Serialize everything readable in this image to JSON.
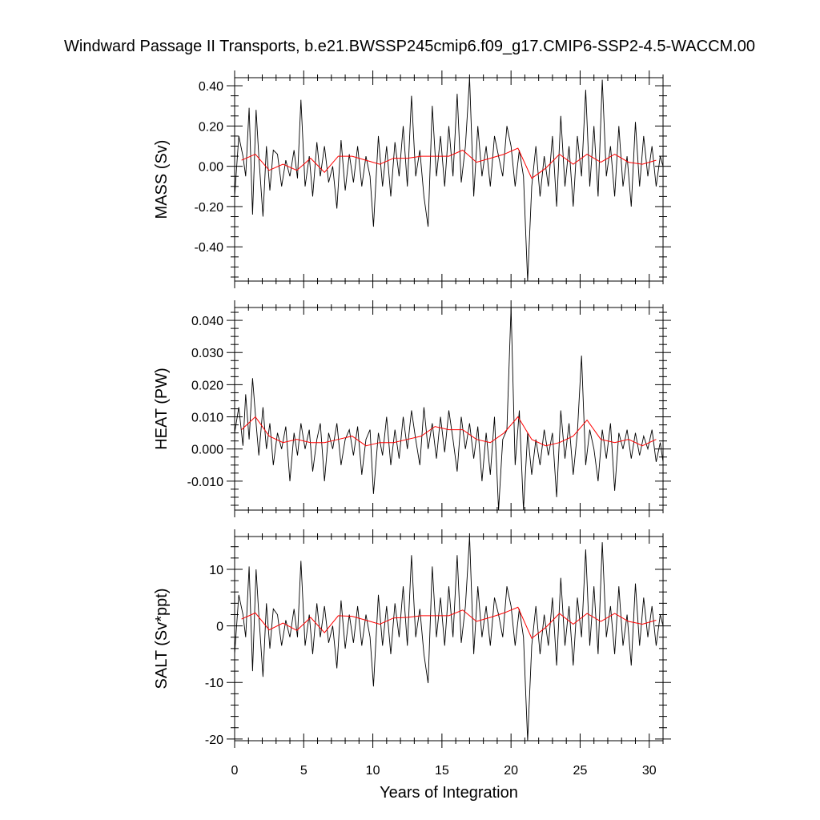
{
  "title": "Windward Passage II Transports, b.e21.BWSSP245cmip6.f09_g17.CMIP6-SSP2-4.5-WACCM.00",
  "chart_data": [
    {
      "type": "line",
      "ylabel": "MASS (Sv)",
      "ylim": [
        -0.57,
        0.44
      ],
      "yticks": [
        {
          "v": 0.4,
          "label": "0.40"
        },
        {
          "v": 0.2,
          "label": "0.20"
        },
        {
          "v": 0.0,
          "label": "0.00"
        },
        {
          "v": -0.2,
          "label": "-0.20"
        },
        {
          "v": -0.4,
          "label": "-0.40"
        }
      ],
      "minor_step": 0.05,
      "monthly_color": "#000000",
      "annual_color": "#ff0000",
      "monthly_x": [
        0.0,
        0.3,
        0.6,
        0.8,
        1.05,
        1.3,
        1.55,
        1.75,
        2.05,
        2.3,
        2.55,
        2.8,
        3.1,
        3.4,
        3.7,
        4.0,
        4.3,
        4.55,
        4.8,
        5.1,
        5.4,
        5.65,
        5.95,
        6.2,
        6.5,
        6.8,
        7.1,
        7.4,
        7.7,
        8.0,
        8.3,
        8.6,
        8.9,
        9.2,
        9.5,
        9.8,
        10.05,
        10.4,
        10.7,
        11.0,
        11.3,
        11.6,
        11.9,
        12.2,
        12.5,
        12.8,
        13.1,
        13.4,
        13.7,
        14.0,
        14.3,
        14.6,
        14.9,
        15.2,
        15.5,
        15.8,
        16.1,
        16.4,
        16.7,
        17.0,
        17.3,
        17.6,
        17.9,
        18.2,
        18.5,
        18.8,
        19.1,
        19.4,
        19.7,
        20.0,
        20.3,
        20.6,
        20.9,
        21.2,
        21.5,
        21.8,
        22.1,
        22.4,
        22.7,
        23.0,
        23.3,
        23.6,
        23.9,
        24.2,
        24.5,
        24.8,
        25.1,
        25.4,
        25.7,
        26.0,
        26.3,
        26.6,
        26.9,
        27.2,
        27.5,
        27.8,
        28.1,
        28.4,
        28.7,
        29.0,
        29.3,
        29.6,
        29.9,
        30.2,
        30.5,
        30.8,
        31.0
      ],
      "monthly_values": [
        -0.15,
        0.15,
        0.05,
        -0.05,
        0.29,
        -0.24,
        0.28,
        0.05,
        -0.25,
        0.1,
        -0.12,
        0.08,
        0.06,
        -0.1,
        0.03,
        -0.05,
        0.08,
        -0.06,
        0.33,
        -0.1,
        0.05,
        -0.15,
        0.12,
        -0.05,
        0.1,
        -0.08,
        0.0,
        -0.21,
        0.13,
        -0.12,
        0.06,
        -0.08,
        0.1,
        -0.1,
        0.05,
        -0.05,
        -0.3,
        0.15,
        -0.1,
        0.1,
        -0.15,
        0.12,
        -0.05,
        0.2,
        -0.1,
        0.35,
        -0.05,
        0.08,
        -0.15,
        -0.3,
        0.3,
        -0.05,
        0.15,
        -0.1,
        0.2,
        -0.05,
        0.36,
        -0.08,
        0.1,
        0.44,
        -0.15,
        0.2,
        -0.05,
        0.1,
        -0.1,
        0.15,
        0.05,
        -0.05,
        0.2,
        0.1,
        -0.1,
        0.08,
        -0.05,
        -0.57,
        -0.1,
        0.1,
        -0.15,
        0.05,
        -0.1,
        0.15,
        -0.2,
        0.25,
        -0.1,
        0.1,
        -0.2,
        0.15,
        -0.05,
        0.38,
        -0.1,
        0.2,
        -0.15,
        0.43,
        -0.05,
        0.1,
        -0.15,
        0.2,
        -0.1,
        0.05,
        -0.2,
        0.22,
        -0.1,
        0.15,
        -0.05,
        0.1,
        -0.1,
        0.05,
        0.0
      ],
      "annual_x": [
        0.5,
        1.5,
        2.5,
        3.5,
        4.5,
        5.5,
        6.5,
        7.5,
        8.5,
        9.5,
        10.5,
        11.5,
        12.5,
        13.5,
        14.5,
        15.5,
        16.5,
        17.5,
        18.5,
        19.5,
        20.5,
        21.5,
        22.5,
        23.5,
        24.5,
        25.5,
        26.5,
        27.5,
        28.5,
        29.5,
        30.5
      ],
      "annual_values": [
        0.03,
        0.06,
        -0.02,
        0.01,
        -0.02,
        0.04,
        -0.03,
        0.05,
        0.05,
        0.03,
        0.01,
        0.04,
        0.04,
        0.05,
        0.05,
        0.05,
        0.08,
        0.02,
        0.04,
        0.06,
        0.09,
        -0.06,
        -0.01,
        0.06,
        0.01,
        0.06,
        0.02,
        0.06,
        0.02,
        0.01,
        0.03
      ]
    },
    {
      "type": "line",
      "ylabel": "HEAT (PW)",
      "ylim": [
        -0.019,
        0.044
      ],
      "yticks": [
        {
          "v": 0.04,
          "label": "0.040"
        },
        {
          "v": 0.03,
          "label": "0.030"
        },
        {
          "v": 0.02,
          "label": "0.020"
        },
        {
          "v": 0.01,
          "label": "0.010"
        },
        {
          "v": 0.0,
          "label": "0.000"
        },
        {
          "v": -0.01,
          "label": "-0.010"
        }
      ],
      "minor_step": 0.0025,
      "monthly_color": "#000000",
      "annual_color": "#ff0000",
      "monthly_x": [
        0.0,
        0.3,
        0.6,
        0.8,
        1.05,
        1.3,
        1.55,
        1.75,
        2.05,
        2.3,
        2.55,
        2.8,
        3.1,
        3.4,
        3.7,
        4.0,
        4.3,
        4.55,
        4.8,
        5.1,
        5.4,
        5.65,
        5.95,
        6.2,
        6.5,
        6.8,
        7.1,
        7.4,
        7.7,
        8.0,
        8.3,
        8.6,
        8.9,
        9.2,
        9.5,
        9.8,
        10.05,
        10.4,
        10.7,
        11.0,
        11.3,
        11.6,
        11.9,
        12.2,
        12.5,
        12.8,
        13.1,
        13.4,
        13.7,
        14.0,
        14.3,
        14.6,
        14.9,
        15.2,
        15.5,
        15.8,
        16.1,
        16.4,
        16.7,
        17.0,
        17.3,
        17.6,
        17.9,
        18.2,
        18.5,
        18.8,
        19.1,
        19.4,
        19.7,
        20.0,
        20.3,
        20.6,
        20.9,
        21.2,
        21.5,
        21.8,
        22.1,
        22.4,
        22.7,
        23.0,
        23.3,
        23.6,
        23.9,
        24.2,
        24.5,
        24.8,
        25.1,
        25.4,
        25.7,
        26.0,
        26.3,
        26.6,
        26.9,
        27.2,
        27.5,
        27.8,
        28.1,
        28.4,
        28.7,
        29.0,
        29.3,
        29.6,
        29.9,
        30.2,
        30.5,
        30.8,
        31.0
      ],
      "monthly_values": [
        0.005,
        0.013,
        0.001,
        0.017,
        0.003,
        0.022,
        0.008,
        -0.002,
        0.013,
        0.0,
        0.008,
        -0.005,
        0.005,
        0.0,
        0.007,
        -0.01,
        0.005,
        -0.002,
        0.008,
        0.0,
        0.006,
        -0.007,
        0.003,
        0.008,
        -0.01,
        0.005,
        0.0,
        0.008,
        -0.005,
        0.003,
        0.006,
        -0.002,
        0.007,
        -0.008,
        0.003,
        0.006,
        -0.014,
        0.005,
        -0.002,
        0.01,
        -0.005,
        0.006,
        -0.003,
        0.01,
        0.0,
        0.012,
        0.003,
        -0.005,
        0.013,
        0.0,
        0.008,
        -0.003,
        0.01,
        -0.001,
        0.012,
        0.003,
        -0.007,
        0.01,
        0.0,
        0.008,
        -0.003,
        0.007,
        -0.01,
        0.005,
        -0.008,
        0.01,
        -0.019,
        0.003,
        0.006,
        0.044,
        -0.005,
        0.012,
        -0.019,
        0.005,
        -0.008,
        0.003,
        -0.005,
        0.006,
        -0.002,
        0.005,
        -0.015,
        0.012,
        -0.003,
        0.008,
        -0.008,
        0.005,
        0.029,
        -0.005,
        0.006,
        0.0,
        -0.01,
        0.006,
        -0.003,
        0.008,
        -0.013,
        0.005,
        0.0,
        0.006,
        -0.003,
        0.005,
        -0.002,
        0.004,
        0.0,
        0.006,
        -0.004,
        0.002,
        -0.004
      ],
      "annual_x": [
        0.5,
        1.5,
        2.5,
        3.5,
        4.5,
        5.5,
        6.5,
        7.5,
        8.5,
        9.5,
        10.5,
        11.5,
        12.5,
        13.5,
        14.5,
        15.5,
        16.5,
        17.5,
        18.5,
        19.5,
        20.5,
        21.5,
        22.5,
        23.5,
        24.5,
        25.5,
        26.5,
        27.5,
        28.5,
        29.5,
        30.5
      ],
      "annual_values": [
        0.006,
        0.01,
        0.004,
        0.002,
        0.003,
        0.002,
        0.002,
        0.003,
        0.004,
        0.001,
        0.002,
        0.002,
        0.003,
        0.004,
        0.007,
        0.006,
        0.006,
        0.003,
        0.002,
        0.005,
        0.01,
        0.003,
        0.001,
        0.002,
        0.004,
        0.009,
        0.003,
        0.002,
        0.003,
        0.001,
        0.003
      ]
    },
    {
      "type": "line",
      "ylabel": "SALT (Sv*ppt)",
      "ylim": [
        -20.3,
        15.8
      ],
      "yticks": [
        {
          "v": 10,
          "label": "10"
        },
        {
          "v": 0,
          "label": "0"
        },
        {
          "v": -10,
          "label": "-10"
        },
        {
          "v": -20,
          "label": "-20"
        }
      ],
      "minor_step": 2,
      "monthly_color": "#000000",
      "annual_color": "#ff0000",
      "monthly_x": [
        0.0,
        0.3,
        0.6,
        0.8,
        1.05,
        1.3,
        1.55,
        1.75,
        2.05,
        2.3,
        2.55,
        2.8,
        3.1,
        3.4,
        3.7,
        4.0,
        4.3,
        4.55,
        4.8,
        5.1,
        5.4,
        5.65,
        5.95,
        6.2,
        6.5,
        6.8,
        7.1,
        7.4,
        7.7,
        8.0,
        8.3,
        8.6,
        8.9,
        9.2,
        9.5,
        9.8,
        10.05,
        10.4,
        10.7,
        11.0,
        11.3,
        11.6,
        11.9,
        12.2,
        12.5,
        12.8,
        13.1,
        13.4,
        13.7,
        14.0,
        14.3,
        14.6,
        14.9,
        15.2,
        15.5,
        15.8,
        16.1,
        16.4,
        16.7,
        17.0,
        17.3,
        17.6,
        17.9,
        18.2,
        18.5,
        18.8,
        19.1,
        19.4,
        19.7,
        20.0,
        20.3,
        20.6,
        20.9,
        21.2,
        21.5,
        21.8,
        22.1,
        22.4,
        22.7,
        23.0,
        23.3,
        23.6,
        23.9,
        24.2,
        24.5,
        24.8,
        25.1,
        25.4,
        25.7,
        26.0,
        26.3,
        26.6,
        26.9,
        27.2,
        27.5,
        27.8,
        28.1,
        28.4,
        28.7,
        29.0,
        29.3,
        29.6,
        29.9,
        30.2,
        30.5,
        30.8,
        31.0
      ],
      "monthly_values": [
        -5.0,
        5.5,
        2.0,
        -2.0,
        10.5,
        -8.0,
        10.0,
        2.0,
        -9.0,
        4.0,
        -4.0,
        3.0,
        2.0,
        -3.5,
        1.0,
        -2.0,
        3.0,
        -2.0,
        11.5,
        -3.5,
        2.0,
        -5.0,
        4.0,
        -2.0,
        3.5,
        -3.0,
        0.0,
        -7.5,
        4.5,
        -4.0,
        2.0,
        -3.0,
        3.5,
        -3.5,
        2.0,
        -2.0,
        -10.7,
        5.5,
        -3.5,
        3.5,
        -5.0,
        4.0,
        -2.0,
        7.0,
        -3.5,
        12.5,
        -2.0,
        3.0,
        -5.0,
        -10.1,
        10.5,
        -2.0,
        5.0,
        -3.5,
        7.0,
        -2.0,
        12.5,
        -3.0,
        3.5,
        15.8,
        -5.0,
        7.0,
        -2.0,
        3.5,
        -3.5,
        5.0,
        2.0,
        -2.0,
        7.0,
        3.5,
        -3.5,
        3.0,
        -2.0,
        -20.3,
        -3.5,
        3.5,
        -5.0,
        2.0,
        -3.5,
        5.0,
        -7.0,
        8.5,
        -3.5,
        3.5,
        -7.0,
        5.0,
        -2.0,
        13.5,
        -3.5,
        7.0,
        -5.0,
        14.8,
        -2.0,
        3.5,
        -5.0,
        7.0,
        -3.5,
        2.0,
        -7.0,
        7.5,
        -3.5,
        5.0,
        -2.0,
        3.5,
        -3.5,
        2.0,
        0.0
      ],
      "annual_x": [
        0.5,
        1.5,
        2.5,
        3.5,
        4.5,
        5.5,
        6.5,
        7.5,
        8.5,
        9.5,
        10.5,
        11.5,
        12.5,
        13.5,
        14.5,
        15.5,
        16.5,
        17.5,
        18.5,
        19.5,
        20.5,
        21.5,
        22.5,
        23.5,
        24.5,
        25.5,
        26.5,
        27.5,
        28.5,
        29.5,
        30.5
      ],
      "annual_values": [
        1.2,
        2.3,
        -0.7,
        0.5,
        -0.8,
        1.5,
        -1.2,
        1.8,
        1.7,
        1.0,
        0.3,
        1.4,
        1.5,
        1.8,
        1.8,
        1.8,
        2.8,
        0.8,
        1.5,
        2.3,
        3.3,
        -2.2,
        -0.3,
        2.2,
        0.3,
        2.2,
        0.8,
        2.2,
        0.8,
        0.3,
        1.0
      ]
    }
  ],
  "xaxis": {
    "label": "Years of Integration",
    "xlim": [
      0,
      31
    ],
    "ticks": [
      {
        "v": 0,
        "label": "0"
      },
      {
        "v": 5,
        "label": "5"
      },
      {
        "v": 10,
        "label": "10"
      },
      {
        "v": 15,
        "label": "15"
      },
      {
        "v": 20,
        "label": "20"
      },
      {
        "v": 25,
        "label": "25"
      },
      {
        "v": 30,
        "label": "30"
      }
    ],
    "minor_step": 1
  }
}
